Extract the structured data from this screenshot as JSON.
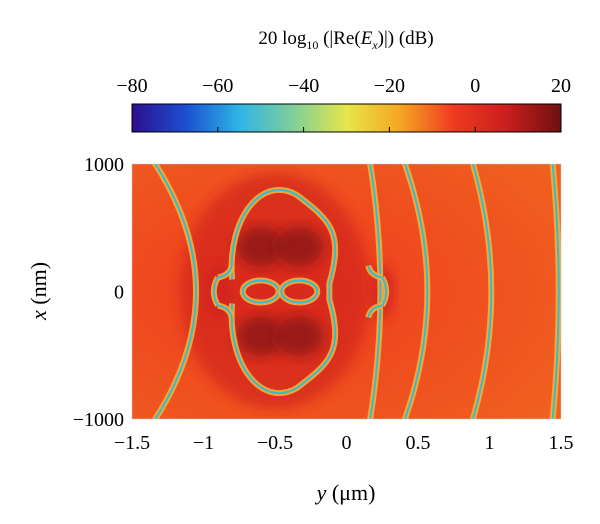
{
  "chart_data": {
    "type": "heatmap",
    "title": {
      "prefix": "20 log",
      "subscript": "10",
      "mid": " (|Re(",
      "var": "E",
      "var_sub": "x",
      "suffix": ")|) (dB)"
    },
    "colorbar": {
      "ticks": [
        "−80",
        "−60",
        "−40",
        "−20",
        "0",
        "20"
      ],
      "tick_values": [
        -80,
        -60,
        -40,
        -20,
        0,
        20
      ],
      "range": [
        -80,
        20
      ],
      "colormap": "jet",
      "stops": [
        "#2b0f8f",
        "#1b4fd0",
        "#2fb4e6",
        "#7fcf9a",
        "#e6e64a",
        "#f5a623",
        "#ee3a1f",
        "#c81e1e",
        "#6e1010"
      ]
    },
    "xaxis": {
      "label_var": "y",
      "label_unit": " (μm)",
      "ticks": [
        "−1.5",
        "−1",
        "−0.5",
        "0",
        "0.5",
        "1",
        "1.5"
      ],
      "tick_values": [
        -1.5,
        -1,
        -0.5,
        0,
        0.5,
        1,
        1.5
      ],
      "range": [
        -1.5,
        1.5
      ]
    },
    "yaxis": {
      "label_var": "x",
      "label_unit": " (nm)",
      "ticks": [
        "1000",
        "0",
        "−1000"
      ],
      "tick_values": [
        1000,
        0,
        -1000
      ],
      "range": [
        -1000,
        1000
      ]
    },
    "colors": {
      "background": "#ee3a1f",
      "warm": "#f0661f",
      "hot": "#d22020",
      "dark": "#8a1414",
      "contour_outer": "#f5b03a",
      "contour_inner": "#36bcd0"
    },
    "features": {
      "nodal_arcs_y": [
        -1.08,
        0.23,
        0.55,
        1.0,
        1.48
      ],
      "dipole_centers": [
        [
          -0.6,
          0
        ],
        [
          -0.33,
          0
        ]
      ]
    }
  }
}
